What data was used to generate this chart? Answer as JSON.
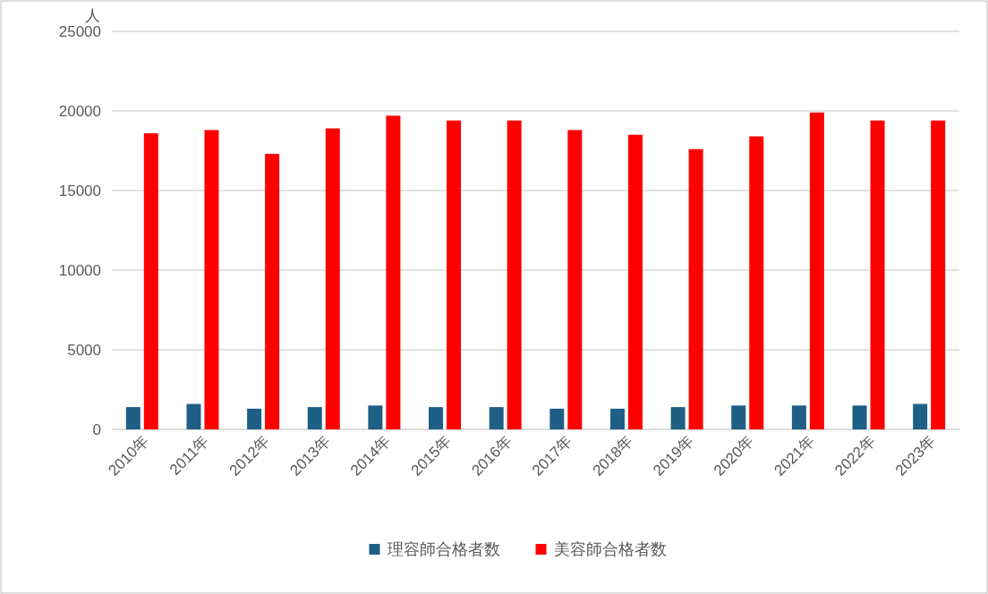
{
  "chart_data": {
    "type": "bar",
    "ylabel": "人",
    "categories": [
      "2010年",
      "2011年",
      "2012年",
      "2013年",
      "2014年",
      "2015年",
      "2016年",
      "2017年",
      "2018年",
      "2019年",
      "2020年",
      "2021年",
      "2022年",
      "2023年"
    ],
    "series": [
      {
        "name": "理容師合格者数",
        "color": "#1f5f85",
        "values": [
          1400,
          1600,
          1300,
          1400,
          1500,
          1400,
          1400,
          1300,
          1300,
          1400,
          1500,
          1500,
          1500,
          1600
        ]
      },
      {
        "name": "美容師合格者数",
        "color": "#ff0000",
        "values": [
          18600,
          18800,
          17300,
          18900,
          19700,
          19400,
          19400,
          18800,
          18500,
          17600,
          18400,
          19900,
          19400,
          19400
        ]
      }
    ],
    "ylim": [
      0,
      25000
    ],
    "yticks": [
      0,
      5000,
      10000,
      15000,
      20000,
      25000
    ],
    "grid": "y",
    "legend": "bottom"
  }
}
